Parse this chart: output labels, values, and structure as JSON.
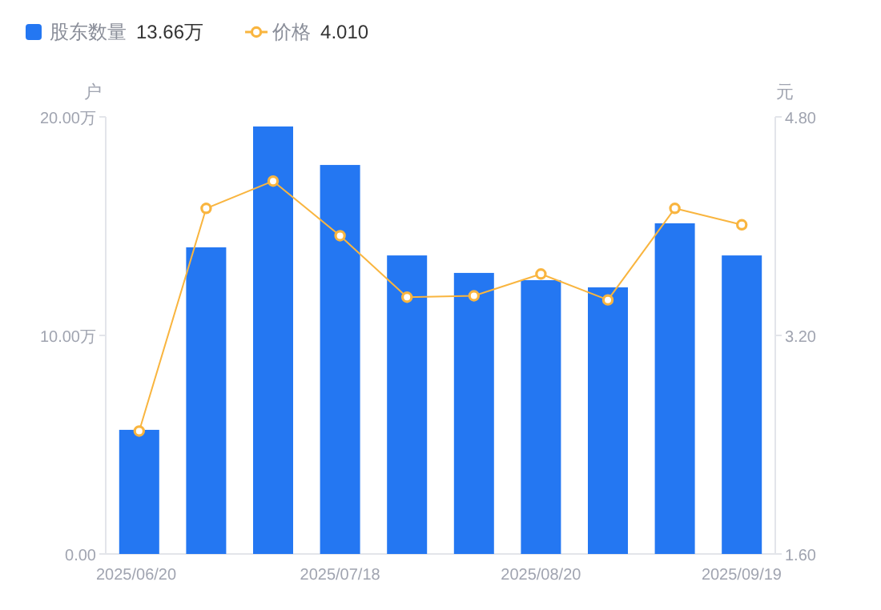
{
  "chart_data": {
    "type": "bar",
    "ylabel": "户",
    "y2label": "元",
    "categories": [
      "2025/06/20",
      null,
      null,
      "2025/07/18",
      null,
      null,
      "2025/08/20",
      null,
      null,
      "2025/09/19"
    ],
    "series": [
      {
        "name": "股东数量",
        "color": "#2477f2",
        "values": [
          5.68,
          14.03,
          19.56,
          17.8,
          13.66,
          12.86,
          12.53,
          12.2,
          15.13,
          13.66
        ]
      },
      {
        "name": "价格",
        "type": "line",
        "axis": "y2",
        "color": "#f9b53f",
        "marker": "circle",
        "values": [
          2.5,
          4.13,
          4.33,
          3.93,
          3.48,
          3.49,
          3.65,
          3.46,
          4.13,
          4.01
        ]
      }
    ],
    "ylim": [
      0,
      20
    ],
    "yticks": [
      {
        "value": 0,
        "label": "0.00"
      },
      {
        "value": 10,
        "label": "10.00万"
      },
      {
        "value": 20,
        "label": "20.00万"
      }
    ],
    "y2lim": [
      1.6,
      4.8
    ],
    "y2ticks": [
      {
        "value": 1.6,
        "label": "1.60"
      },
      {
        "value": 3.2,
        "label": "3.20"
      },
      {
        "value": 4.8,
        "label": "4.80"
      }
    ],
    "legend": "top left",
    "annotations": [
      "13.66万",
      "4.010"
    ]
  }
}
